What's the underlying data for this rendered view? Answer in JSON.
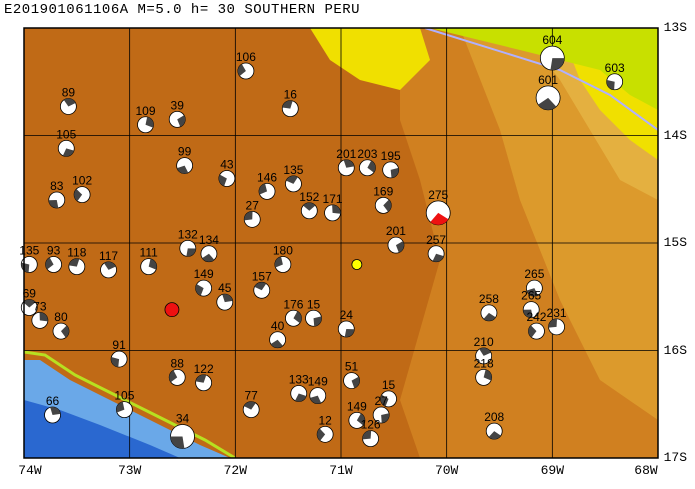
{
  "title": "E201901061106A M=5.0 h= 30 SOUTHERN PERU",
  "map": {
    "lon_range": [
      -74,
      -68
    ],
    "lat_range": [
      -17,
      -13
    ],
    "lon_labels": [
      "74W",
      "73W",
      "72W",
      "71W",
      "70W",
      "69W",
      "68W"
    ],
    "lat_labels": [
      "13S",
      "14S",
      "15S",
      "16S",
      "17S"
    ],
    "colors": {
      "highland": "#c06a16",
      "slope": "#d8881f",
      "foothill": "#e0a030",
      "lowland_yellow": "#f0e000",
      "lowland_green": "#c8e000",
      "ocean_shallow": "#6aa8e8",
      "ocean_deep": "#2a68d0",
      "grid": "#000000",
      "mechanism_fill": "#ffffff",
      "mechanism_quadrant": "#444444",
      "highlight_red": "#ee1111",
      "epicenter_yellow": "#ffff00"
    },
    "epicenter": {
      "lon": -70.85,
      "lat": -15.2
    },
    "mechanisms": [
      {
        "label": "604",
        "lon": -69.0,
        "lat": -13.28
      },
      {
        "label": "601",
        "lon": -69.04,
        "lat": -13.65
      },
      {
        "label": "603",
        "lon": -68.41,
        "lat": -13.5
      },
      {
        "label": "106",
        "lon": -71.9,
        "lat": -13.4
      },
      {
        "label": "16",
        "lon": -71.48,
        "lat": -13.75
      },
      {
        "label": "89",
        "lon": -73.58,
        "lat": -13.73
      },
      {
        "label": "109",
        "lon": -72.85,
        "lat": -13.9
      },
      {
        "label": "39",
        "lon": -72.55,
        "lat": -13.85
      },
      {
        "label": "105",
        "lon": -73.6,
        "lat": -14.12
      },
      {
        "label": "99",
        "lon": -72.48,
        "lat": -14.28
      },
      {
        "label": "43",
        "lon": -72.08,
        "lat": -14.4
      },
      {
        "label": "146",
        "lon": -71.7,
        "lat": -14.52
      },
      {
        "label": "135",
        "lon": -71.45,
        "lat": -14.45
      },
      {
        "label": "201",
        "lon": -70.95,
        "lat": -14.3
      },
      {
        "label": "203",
        "lon": -70.75,
        "lat": -14.3
      },
      {
        "label": "195",
        "lon": -70.53,
        "lat": -14.32
      },
      {
        "label": "275",
        "lon": -70.08,
        "lat": -14.72
      },
      {
        "label": "83",
        "lon": -73.69,
        "lat": -14.6
      },
      {
        "label": "102",
        "lon": -73.45,
        "lat": -14.55
      },
      {
        "label": "27",
        "lon": -71.84,
        "lat": -14.78
      },
      {
        "label": "152",
        "lon": -71.3,
        "lat": -14.7
      },
      {
        "label": "171",
        "lon": -71.08,
        "lat": -14.72
      },
      {
        "label": "169",
        "lon": -70.6,
        "lat": -14.65
      },
      {
        "label": "132",
        "lon": -72.45,
        "lat": -15.05
      },
      {
        "label": "134",
        "lon": -72.25,
        "lat": -15.1
      },
      {
        "label": "135",
        "lon": -73.95,
        "lat": -15.2
      },
      {
        "label": "93",
        "lon": -73.72,
        "lat": -15.2
      },
      {
        "label": "118",
        "lon": -73.5,
        "lat": -15.22
      },
      {
        "label": "117",
        "lon": -73.2,
        "lat": -15.25
      },
      {
        "label": "111",
        "lon": -72.82,
        "lat": -15.22
      },
      {
        "label": "201",
        "lon": -70.48,
        "lat": -15.02
      },
      {
        "label": "257",
        "lon": -70.1,
        "lat": -15.1
      },
      {
        "label": "265",
        "lon": -69.17,
        "lat": -15.42
      },
      {
        "label": "149",
        "lon": -72.3,
        "lat": -15.42
      },
      {
        "label": "180",
        "lon": -71.55,
        "lat": -15.2
      },
      {
        "label": "157",
        "lon": -71.75,
        "lat": -15.44
      },
      {
        "label": "45",
        "lon": -72.1,
        "lat": -15.55
      },
      {
        "label": "176",
        "lon": -71.45,
        "lat": -15.7
      },
      {
        "label": "15",
        "lon": -71.26,
        "lat": -15.7
      },
      {
        "label": "258",
        "lon": -69.6,
        "lat": -15.65
      },
      {
        "label": "265",
        "lon": -69.2,
        "lat": -15.62
      },
      {
        "label": "242",
        "lon": -69.15,
        "lat": -15.82
      },
      {
        "label": "231",
        "lon": -68.96,
        "lat": -15.78
      },
      {
        "label": "69",
        "lon": -73.95,
        "lat": -15.6
      },
      {
        "label": "73",
        "lon": -73.85,
        "lat": -15.72
      },
      {
        "label": "80",
        "lon": -73.65,
        "lat": -15.82
      },
      {
        "label": "24",
        "lon": -70.95,
        "lat": -15.8
      },
      {
        "label": "40",
        "lon": -71.6,
        "lat": -15.9
      },
      {
        "label": "91",
        "lon": -73.1,
        "lat": -16.08
      },
      {
        "label": "88",
        "lon": -72.55,
        "lat": -16.25
      },
      {
        "label": "122",
        "lon": -72.3,
        "lat": -16.3
      },
      {
        "label": "210",
        "lon": -69.65,
        "lat": -16.05
      },
      {
        "label": "218",
        "lon": -69.65,
        "lat": -16.25
      },
      {
        "label": "51",
        "lon": -70.9,
        "lat": -16.28
      },
      {
        "label": "133",
        "lon": -71.4,
        "lat": -16.4
      },
      {
        "label": "149",
        "lon": -71.22,
        "lat": -16.42
      },
      {
        "label": "15",
        "lon": -70.55,
        "lat": -16.45
      },
      {
        "label": "105",
        "lon": -73.05,
        "lat": -16.55
      },
      {
        "label": "77",
        "lon": -71.85,
        "lat": -16.55
      },
      {
        "label": "66",
        "lon": -73.73,
        "lat": -16.6
      },
      {
        "label": "149",
        "lon": -70.85,
        "lat": -16.65
      },
      {
        "label": "27",
        "lon": -70.62,
        "lat": -16.6
      },
      {
        "label": "208",
        "lon": -69.55,
        "lat": -16.75
      },
      {
        "label": "34",
        "lon": -72.5,
        "lat": -16.8
      },
      {
        "label": "12",
        "lon": -71.15,
        "lat": -16.78
      },
      {
        "label": "126",
        "lon": -70.72,
        "lat": -16.82
      }
    ]
  }
}
